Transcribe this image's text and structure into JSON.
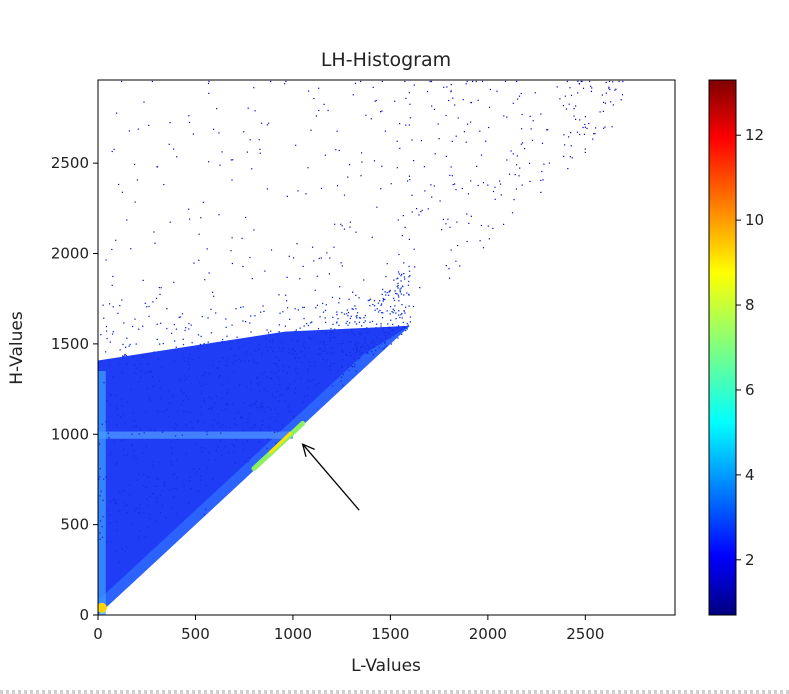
{
  "chart_data": {
    "type": "heatmap",
    "title": "LH-Histogram",
    "xlabel": "L-Values",
    "ylabel": "H-Values",
    "xlim": [
      0,
      2960
    ],
    "ylim": [
      0,
      2960
    ],
    "x_ticks": [
      0,
      500,
      1000,
      1500,
      2000,
      2500
    ],
    "y_ticks": [
      0,
      500,
      1000,
      1500,
      2000,
      2500
    ],
    "grid": false,
    "colormap": "jet",
    "colorbar": {
      "range": [
        0.7,
        13.3
      ],
      "ticks": [
        2,
        4,
        6,
        8,
        10,
        12
      ]
    },
    "features": {
      "diagonal_boundary": "H = L",
      "dense_region_max_l": 1600,
      "horizontal_band_h": 1000,
      "hotspot_l_range": [
        800,
        1050
      ],
      "sparse_outliers_h_max": 2960
    },
    "annotation": {
      "type": "arrow",
      "from": [
        1340,
        580
      ],
      "to": [
        1050,
        945
      ]
    }
  }
}
